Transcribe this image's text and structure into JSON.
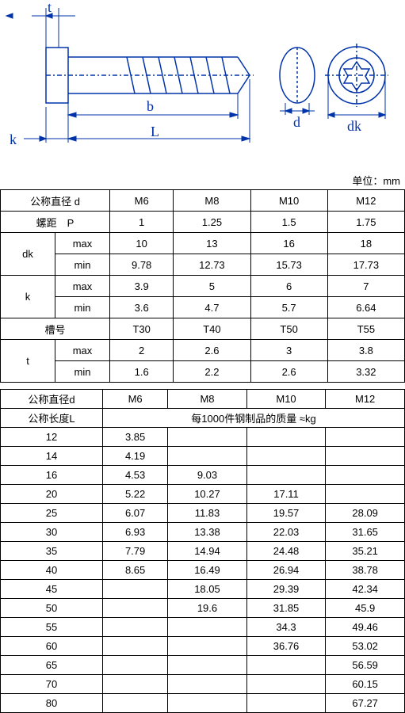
{
  "unit_label": "单位：mm",
  "diagram": {
    "labels": {
      "t": "t",
      "b": "b",
      "L": "L",
      "k": "k",
      "d": "d",
      "dk": "dk"
    },
    "color": "#0033aa"
  },
  "table1": {
    "header": {
      "nominal": "公称直径 d",
      "sizes": [
        "M6",
        "M8",
        "M10",
        "M12"
      ]
    },
    "rows": [
      {
        "label": "螺距　P",
        "sub": "",
        "vals": [
          "1",
          "1.25",
          "1.5",
          "1.75"
        ]
      },
      {
        "label": "dk",
        "sub": "max",
        "vals": [
          "10",
          "13",
          "16",
          "18"
        ]
      },
      {
        "label": "",
        "sub": "min",
        "vals": [
          "9.78",
          "12.73",
          "15.73",
          "17.73"
        ]
      },
      {
        "label": "k",
        "sub": "max",
        "vals": [
          "3.9",
          "5",
          "6",
          "7"
        ]
      },
      {
        "label": "",
        "sub": "min",
        "vals": [
          "3.6",
          "4.7",
          "5.7",
          "6.64"
        ]
      },
      {
        "label": "槽号",
        "sub": "",
        "vals": [
          "T30",
          "T40",
          "T50",
          "T55"
        ]
      },
      {
        "label": "t",
        "sub": "max",
        "vals": [
          "2",
          "2.6",
          "3",
          "3.8"
        ]
      },
      {
        "label": "",
        "sub": "min",
        "vals": [
          "1.6",
          "2.2",
          "2.6",
          "3.32"
        ]
      }
    ]
  },
  "table2": {
    "header": {
      "nominal": "公称直径d",
      "sizes": [
        "M6",
        "M8",
        "M10",
        "M12"
      ]
    },
    "mass_label": "每1000件钢制品的质量 ≈kg",
    "len_label": "公称长度L",
    "rows": [
      {
        "L": "12",
        "v": [
          "3.85",
          "",
          "",
          ""
        ]
      },
      {
        "L": "14",
        "v": [
          "4.19",
          "",
          "",
          ""
        ]
      },
      {
        "L": "16",
        "v": [
          "4.53",
          "9.03",
          "",
          ""
        ]
      },
      {
        "L": "20",
        "v": [
          "5.22",
          "10.27",
          "17.11",
          ""
        ]
      },
      {
        "L": "25",
        "v": [
          "6.07",
          "11.83",
          "19.57",
          "28.09"
        ]
      },
      {
        "L": "30",
        "v": [
          "6.93",
          "13.38",
          "22.03",
          "31.65"
        ]
      },
      {
        "L": "35",
        "v": [
          "7.79",
          "14.94",
          "24.48",
          "35.21"
        ]
      },
      {
        "L": "40",
        "v": [
          "8.65",
          "16.49",
          "26.94",
          "38.78"
        ]
      },
      {
        "L": "45",
        "v": [
          "",
          "18.05",
          "29.39",
          "42.34"
        ]
      },
      {
        "L": "50",
        "v": [
          "",
          "19.6",
          "31.85",
          "45.9"
        ]
      },
      {
        "L": "55",
        "v": [
          "",
          "",
          "34.3",
          "49.46"
        ]
      },
      {
        "L": "60",
        "v": [
          "",
          "",
          "36.76",
          "53.02"
        ]
      },
      {
        "L": "65",
        "v": [
          "",
          "",
          "",
          "56.59"
        ]
      },
      {
        "L": "70",
        "v": [
          "",
          "",
          "",
          "60.15"
        ]
      },
      {
        "L": "80",
        "v": [
          "",
          "",
          "",
          "67.27"
        ]
      }
    ]
  }
}
